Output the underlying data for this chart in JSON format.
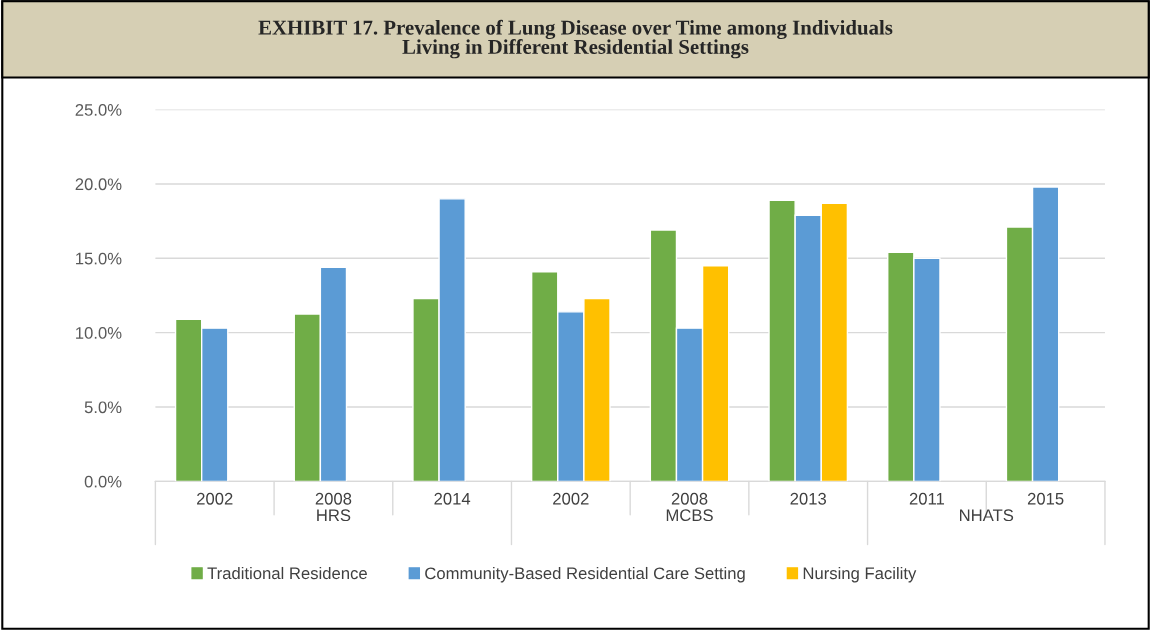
{
  "chart_data": {
    "type": "bar",
    "title": "EXHIBIT 17. Prevalence of Lung Disease over Time among Individuals\nLiving in Different Residential Settings",
    "categories": [
      "2002",
      "2008",
      "2014",
      "2002",
      "2008",
      "2013",
      "2011",
      "2015"
    ],
    "series": [
      {
        "name": "Traditional Residence",
        "color": "#70ad47",
        "values": [
          10.9,
          11.25,
          12.3,
          14.1,
          16.9,
          18.9,
          15.4,
          17.1
        ]
      },
      {
        "name": "Community-Based Residential Care Setting",
        "color": "#5b9bd5",
        "values": [
          10.3,
          14.4,
          19.0,
          11.4,
          10.3,
          17.9,
          15.0,
          19.8
        ]
      },
      {
        "name": "Nursing Facility",
        "color": "#ffc000",
        "values": [
          null,
          null,
          null,
          12.3,
          14.5,
          18.7,
          null,
          null
        ]
      }
    ],
    "annotations": [
      "HRS",
      "MCBS",
      "NHATS"
    ],
    "ylim": [
      0,
      25
    ],
    "yticks": [
      {
        "value": 0,
        "label": "0.0%"
      },
      {
        "value": 5,
        "label": "5.0%"
      },
      {
        "value": 10,
        "label": "10.0%"
      },
      {
        "value": 15,
        "label": "15.0%"
      },
      {
        "value": 20,
        "label": "20.0%"
      },
      {
        "value": 25,
        "label": "25.0%"
      }
    ],
    "grid": "y",
    "legend": "bottom"
  }
}
